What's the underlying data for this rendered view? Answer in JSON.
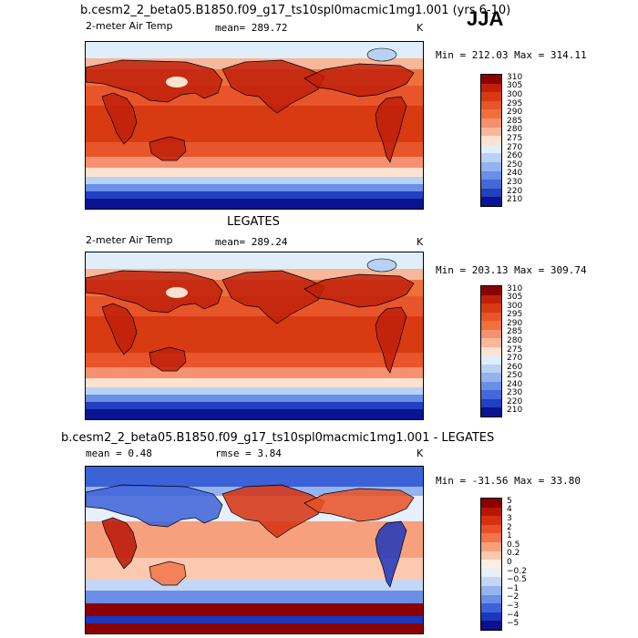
{
  "season": "JJA",
  "chart_data": [
    {
      "type": "heatmap",
      "title": "b.cesm2_2_beta05.B1850.f09_g17_ts10spl0macmic1mg1.001 (yrs 6-10)",
      "variable": "2-meter Air Temp",
      "mean_text": "mean= 289.72",
      "units": "K",
      "minmax_text": "Min = 212.03 Max = 314.11",
      "min": 212.03,
      "max": 314.11,
      "mean": 289.72,
      "colorbar_levels": [
        "310",
        "305",
        "300",
        "295",
        "290",
        "285",
        "280",
        "275",
        "270",
        "260",
        "250",
        "240",
        "230",
        "220",
        "210"
      ],
      "colors": [
        "#8b0000",
        "#c0200a",
        "#d83a12",
        "#e8552a",
        "#f0703c",
        "#f59070",
        "#f8b69a",
        "#fde2d0",
        "#dfeefa",
        "#b8d2f5",
        "#92b3ee",
        "#6a8fe6",
        "#4468d8",
        "#2240c0",
        "#0a1490"
      ]
    },
    {
      "type": "heatmap",
      "title": "LEGATES",
      "variable": "2-meter Air Temp",
      "mean_text": "mean= 289.24",
      "units": "K",
      "minmax_text": "Min = 203.13 Max = 309.74",
      "min": 203.13,
      "max": 309.74,
      "mean": 289.24,
      "colorbar_levels": [
        "310",
        "305",
        "300",
        "295",
        "290",
        "285",
        "280",
        "275",
        "270",
        "260",
        "250",
        "240",
        "230",
        "220",
        "210"
      ],
      "colors": [
        "#8b0000",
        "#c0200a",
        "#d83a12",
        "#e8552a",
        "#f0703c",
        "#f59070",
        "#f8b69a",
        "#fde2d0",
        "#dfeefa",
        "#b8d2f5",
        "#92b3ee",
        "#6a8fe6",
        "#4468d8",
        "#2240c0",
        "#0a1490"
      ]
    },
    {
      "type": "heatmap",
      "title": "b.cesm2_2_beta05.B1850.f09_g17_ts10spl0macmic1mg1.001 - LEGATES",
      "mean_text": "mean =    0.48",
      "rmse_text": "rmse =    3.84",
      "units": "K",
      "minmax_text": "Min = -31.56 Max =  33.80",
      "min": -31.56,
      "max": 33.8,
      "mean": 0.48,
      "rmse": 3.84,
      "colorbar_levels": [
        "5",
        "4",
        "3",
        "2",
        "1",
        "0.5",
        "0.2",
        "0",
        "−0.2",
        "−0.5",
        "−1",
        "−2",
        "−3",
        "−4",
        "−5"
      ],
      "colors": [
        "#8b0000",
        "#b81505",
        "#d6300f",
        "#e85025",
        "#f27448",
        "#f7a07e",
        "#fbc9b0",
        "#fdeee4",
        "#e6effb",
        "#c3d6f5",
        "#95b4ee",
        "#6b8ee6",
        "#3c62d8",
        "#1c36bc",
        "#0a1090"
      ]
    }
  ]
}
